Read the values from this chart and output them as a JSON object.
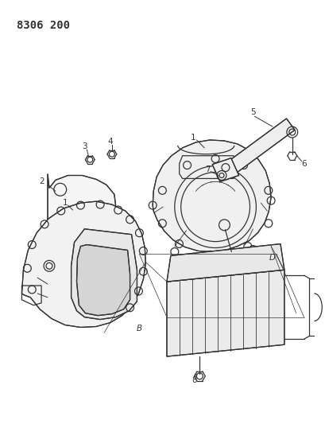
{
  "title": "8306 200",
  "bg_color": "#ffffff",
  "line_color": "#333333",
  "title_fontsize": 10,
  "label_fontsize": 7.5,
  "fig_width": 4.1,
  "fig_height": 5.33,
  "dpi": 100
}
